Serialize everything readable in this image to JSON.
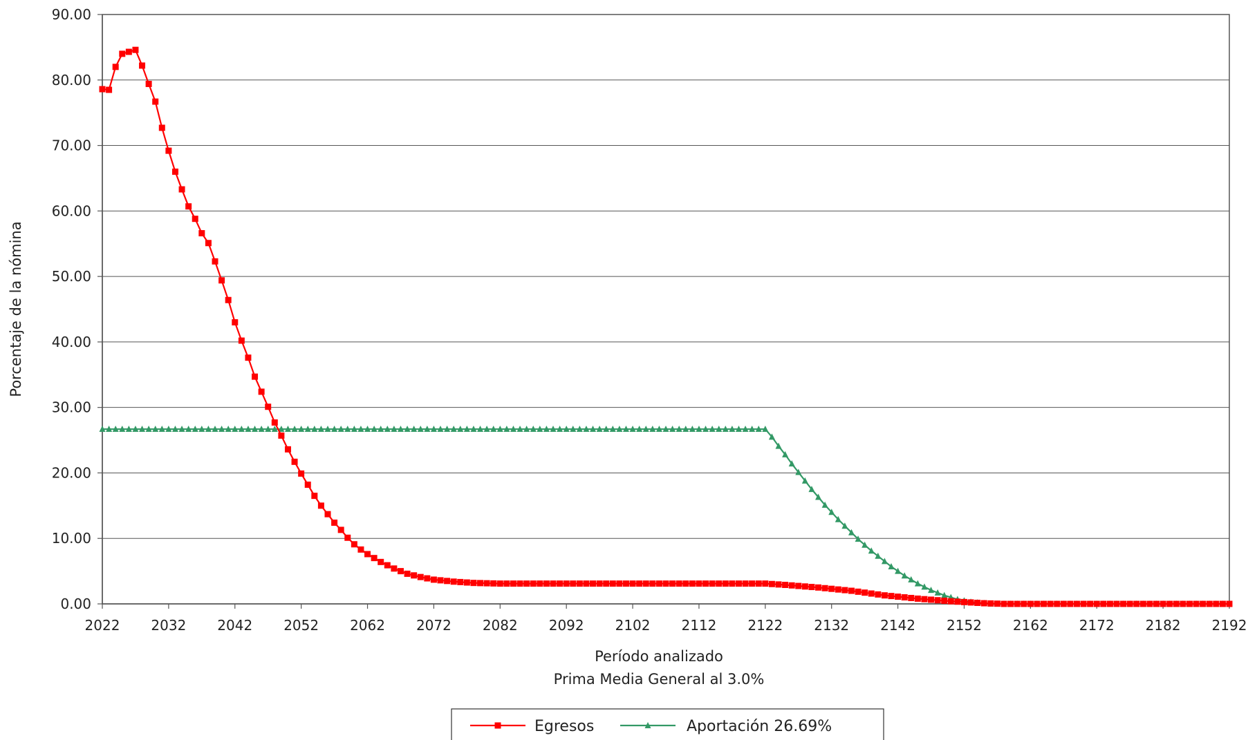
{
  "chart_data": {
    "type": "line",
    "ylabel": "Porcentaje de la nómina",
    "xlabel": "Período analizado",
    "xlabel2": "Prima Media General al 3.0%",
    "ylim": [
      0,
      90
    ],
    "xlim": [
      2022,
      2192
    ],
    "y_ticks": [
      "0.00",
      "10.00",
      "20.00",
      "30.00",
      "40.00",
      "50.00",
      "60.00",
      "70.00",
      "80.00",
      "90.00"
    ],
    "y_tick_values": [
      0,
      10,
      20,
      30,
      40,
      50,
      60,
      70,
      80,
      90
    ],
    "x_ticks": [
      "2022",
      "2032",
      "2042",
      "2052",
      "2062",
      "2072",
      "2082",
      "2092",
      "2102",
      "2112",
      "2122",
      "2132",
      "2142",
      "2152",
      "2162",
      "2172",
      "2182",
      "2192"
    ],
    "x_tick_values": [
      2022,
      2032,
      2042,
      2052,
      2062,
      2072,
      2082,
      2092,
      2102,
      2112,
      2122,
      2132,
      2142,
      2152,
      2162,
      2172,
      2182,
      2192
    ],
    "grid": true,
    "legend_position": "bottom-center",
    "series": [
      {
        "name": "Egresos",
        "color": "#ff0000",
        "marker": "square",
        "x_start": 2022,
        "keypoints": [
          [
            2022,
            78.6
          ],
          [
            2023,
            78.5
          ],
          [
            2024,
            82.0
          ],
          [
            2025,
            84.0
          ],
          [
            2026,
            84.3
          ],
          [
            2027,
            84.6
          ],
          [
            2028,
            82.2
          ],
          [
            2029,
            79.4
          ],
          [
            2030,
            76.7
          ],
          [
            2031,
            72.7
          ],
          [
            2032,
            69.2
          ],
          [
            2033,
            66.0
          ],
          [
            2034,
            63.3
          ],
          [
            2035,
            60.7
          ],
          [
            2036,
            58.8
          ],
          [
            2037,
            56.6
          ],
          [
            2038,
            55.1
          ],
          [
            2039,
            52.3
          ],
          [
            2040,
            49.4
          ],
          [
            2041,
            46.4
          ],
          [
            2042,
            43.0
          ],
          [
            2043,
            40.2
          ],
          [
            2044,
            37.6
          ],
          [
            2045,
            34.7
          ],
          [
            2046,
            32.4
          ],
          [
            2047,
            30.1
          ],
          [
            2048,
            27.7
          ],
          [
            2049,
            25.7
          ],
          [
            2050,
            23.6
          ],
          [
            2051,
            21.7
          ],
          [
            2052,
            19.9
          ],
          [
            2053,
            18.2
          ],
          [
            2054,
            16.5
          ],
          [
            2055,
            15.0
          ],
          [
            2056,
            13.7
          ],
          [
            2057,
            12.4
          ],
          [
            2058,
            11.3
          ],
          [
            2059,
            10.1
          ],
          [
            2060,
            9.1
          ],
          [
            2061,
            8.3
          ],
          [
            2062,
            7.6
          ],
          [
            2063,
            7.0
          ],
          [
            2064,
            6.4
          ],
          [
            2065,
            5.9
          ],
          [
            2066,
            5.4
          ],
          [
            2067,
            5.0
          ],
          [
            2068,
            4.6
          ],
          [
            2070,
            4.1
          ],
          [
            2072,
            3.7
          ],
          [
            2075,
            3.4
          ],
          [
            2078,
            3.2
          ],
          [
            2082,
            3.1
          ],
          [
            2090,
            3.1
          ],
          [
            2122,
            3.1
          ],
          [
            2125,
            2.9
          ],
          [
            2130,
            2.5
          ],
          [
            2135,
            2.0
          ],
          [
            2140,
            1.3
          ],
          [
            2145,
            0.8
          ],
          [
            2150,
            0.4
          ],
          [
            2155,
            0.1
          ],
          [
            2158,
            0.0
          ],
          [
            2192,
            0.0
          ]
        ]
      },
      {
        "name": "Aportación 26.69%",
        "color": "#339966",
        "marker": "triangle",
        "x_start": 2022,
        "keypoints": [
          [
            2022,
            26.69
          ],
          [
            2122,
            26.69
          ],
          [
            2123,
            25.5
          ],
          [
            2124,
            24.1
          ],
          [
            2125,
            22.8
          ],
          [
            2126,
            21.4
          ],
          [
            2127,
            20.1
          ],
          [
            2128,
            18.8
          ],
          [
            2129,
            17.5
          ],
          [
            2130,
            16.3
          ],
          [
            2131,
            15.1
          ],
          [
            2132,
            14.0
          ],
          [
            2133,
            12.9
          ],
          [
            2134,
            11.9
          ],
          [
            2135,
            10.9
          ],
          [
            2136,
            9.9
          ],
          [
            2137,
            9.0
          ],
          [
            2138,
            8.1
          ],
          [
            2139,
            7.3
          ],
          [
            2140,
            6.5
          ],
          [
            2141,
            5.7
          ],
          [
            2142,
            5.0
          ],
          [
            2143,
            4.3
          ],
          [
            2144,
            3.7
          ],
          [
            2145,
            3.1
          ],
          [
            2146,
            2.6
          ],
          [
            2147,
            2.1
          ],
          [
            2148,
            1.7
          ],
          [
            2149,
            1.3
          ],
          [
            2150,
            1.0
          ],
          [
            2151,
            0.7
          ],
          [
            2152,
            0.5
          ],
          [
            2153,
            0.3
          ],
          [
            2154,
            0.2
          ],
          [
            2155,
            0.1
          ],
          [
            2156,
            0.0
          ],
          [
            2192,
            0.0
          ]
        ]
      }
    ]
  }
}
